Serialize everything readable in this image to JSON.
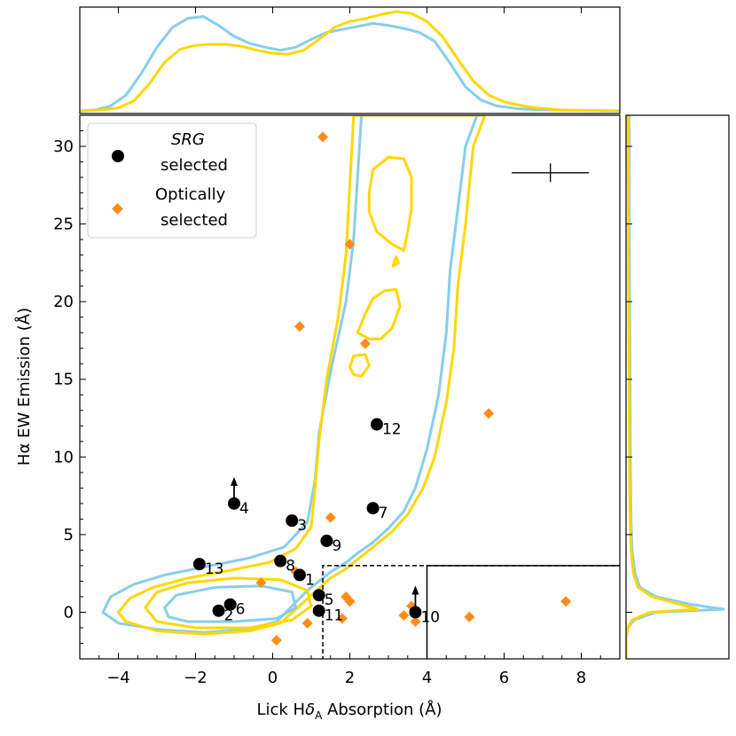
{
  "chart_data": {
    "type": "scatter",
    "xlabel": "Lick Hδ_A Absorption (Å)",
    "xlabel_main": "Lick H",
    "xlabel_delta": "δ",
    "xlabel_sub": "A",
    "xlabel_tail": " Absorption (Å)",
    "ylabel": "Hα EW Emission (Å)",
    "xlim": [
      -5,
      9
    ],
    "ylim": [
      -3,
      32
    ],
    "xticks": [
      {
        "v": -4,
        "label": "−4"
      },
      {
        "v": -2,
        "label": "−2"
      },
      {
        "v": 0,
        "label": "0"
      },
      {
        "v": 2,
        "label": "2"
      },
      {
        "v": 4,
        "label": "4"
      },
      {
        "v": 6,
        "label": "6"
      },
      {
        "v": 8,
        "label": "8"
      }
    ],
    "yticks": [
      {
        "v": 0,
        "label": "0"
      },
      {
        "v": 5,
        "label": "5"
      },
      {
        "v": 10,
        "label": "10"
      },
      {
        "v": 15,
        "label": "15"
      },
      {
        "v": 20,
        "label": "20"
      },
      {
        "v": 25,
        "label": "25"
      },
      {
        "v": 30,
        "label": "30"
      }
    ],
    "legend": {
      "position": "top-left",
      "entries": [
        {
          "line1": "SRG",
          "line2": "selected",
          "marker": "circle",
          "color": "#000000"
        },
        {
          "line1": "Optically",
          "line2": "selected",
          "marker": "diamond",
          "color": "#ff8c1a"
        }
      ]
    },
    "srg_selected": [
      {
        "id": "1",
        "x": 0.7,
        "y": 2.4
      },
      {
        "id": "2",
        "x": -1.4,
        "y": 0.1
      },
      {
        "id": "3",
        "x": 0.5,
        "y": 5.9
      },
      {
        "id": "4",
        "x": -1.0,
        "y": 7.0,
        "lower_limit": true
      },
      {
        "id": "5",
        "x": 1.2,
        "y": 1.1
      },
      {
        "id": "6",
        "x": -1.1,
        "y": 0.5
      },
      {
        "id": "7",
        "x": 2.6,
        "y": 6.7
      },
      {
        "id": "8",
        "x": 0.2,
        "y": 3.3
      },
      {
        "id": "9",
        "x": 1.4,
        "y": 4.6
      },
      {
        "id": "10",
        "x": 3.7,
        "y": 0.0,
        "lower_limit": true
      },
      {
        "id": "11",
        "x": 1.2,
        "y": 0.1
      },
      {
        "id": "12",
        "x": 2.7,
        "y": 12.1
      },
      {
        "id": "13",
        "x": -1.9,
        "y": 3.1
      }
    ],
    "optically_selected": [
      {
        "x": 1.3,
        "y": 30.6
      },
      {
        "x": 2.0,
        "y": 23.7
      },
      {
        "x": 0.7,
        "y": 18.4
      },
      {
        "x": 2.4,
        "y": 17.3
      },
      {
        "x": 5.6,
        "y": 12.8
      },
      {
        "x": 1.5,
        "y": 6.1
      },
      {
        "x": 0.6,
        "y": 2.6
      },
      {
        "x": -0.3,
        "y": 1.9
      },
      {
        "x": 1.9,
        "y": 1.0
      },
      {
        "x": 2.0,
        "y": 0.7
      },
      {
        "x": 1.8,
        "y": -0.4
      },
      {
        "x": 0.9,
        "y": -0.7
      },
      {
        "x": 0.1,
        "y": -1.8
      },
      {
        "x": 3.4,
        "y": -0.2
      },
      {
        "x": 3.6,
        "y": 0.4
      },
      {
        "x": 3.7,
        "y": -0.6
      },
      {
        "x": 5.1,
        "y": -0.3
      },
      {
        "x": 7.6,
        "y": 0.7
      }
    ],
    "error_bar": {
      "x": 7.2,
      "y": 28.3,
      "x_err": 1.0,
      "y_err": 0.6
    },
    "regions": [
      {
        "name": "dashed",
        "x0": 1.3,
        "y0": 3.0,
        "style": "dashed"
      },
      {
        "name": "solid",
        "x0": 4.0,
        "y0": 3.0,
        "style": "solid"
      }
    ],
    "contour_colors": {
      "inner": "#87ceeb",
      "outer": "#ffd700"
    },
    "contours": {
      "blue_outer": [
        [
          -4.4,
          0.0
        ],
        [
          -4.2,
          1.0
        ],
        [
          -3.6,
          1.8
        ],
        [
          -2.8,
          2.4
        ],
        [
          -1.8,
          2.9
        ],
        [
          -0.6,
          3.5
        ],
        [
          0.3,
          4.2
        ],
        [
          0.9,
          5.8
        ],
        [
          1.1,
          8.5
        ],
        [
          1.2,
          11.5
        ],
        [
          1.5,
          15.5
        ],
        [
          1.9,
          20.0
        ],
        [
          2.1,
          24.0
        ],
        [
          2.2,
          28.0
        ],
        [
          2.3,
          32.0
        ],
        [
          5.3,
          32.0
        ],
        [
          5.0,
          30.0
        ],
        [
          4.8,
          26.0
        ],
        [
          4.6,
          22.0
        ],
        [
          4.5,
          18.0
        ],
        [
          4.3,
          14.0
        ],
        [
          4.0,
          10.5
        ],
        [
          3.7,
          8.0
        ],
        [
          3.4,
          6.5
        ],
        [
          3.0,
          5.4
        ],
        [
          2.6,
          4.5
        ],
        [
          2.2,
          3.8
        ],
        [
          1.9,
          3.2
        ],
        [
          1.5,
          2.6
        ],
        [
          0.9,
          1.4
        ],
        [
          0.5,
          0.4
        ],
        [
          0.1,
          -0.6
        ],
        [
          -0.6,
          -1.1
        ],
        [
          -1.8,
          -1.3
        ],
        [
          -3.0,
          -1.1
        ],
        [
          -4.0,
          -0.7
        ]
      ],
      "yellow_outer": [
        [
          -4.0,
          0.0
        ],
        [
          -3.7,
          0.9
        ],
        [
          -3.1,
          1.6
        ],
        [
          -2.2,
          2.2
        ],
        [
          -1.1,
          2.7
        ],
        [
          -0.1,
          3.2
        ],
        [
          0.6,
          4.1
        ],
        [
          1.0,
          5.5
        ],
        [
          1.1,
          8.0
        ],
        [
          1.2,
          11.0
        ],
        [
          1.4,
          15.0
        ],
        [
          1.7,
          19.0
        ],
        [
          1.9,
          23.0
        ],
        [
          2.0,
          27.5
        ],
        [
          2.1,
          32.0
        ],
        [
          5.5,
          32.0
        ],
        [
          5.2,
          30.0
        ],
        [
          5.0,
          25.0
        ],
        [
          4.8,
          21.0
        ],
        [
          4.7,
          17.0
        ],
        [
          4.5,
          13.5
        ],
        [
          4.2,
          10.0
        ],
        [
          3.9,
          8.0
        ],
        [
          3.5,
          6.3
        ],
        [
          3.1,
          5.2
        ],
        [
          2.6,
          4.2
        ],
        [
          2.2,
          3.4
        ],
        [
          1.9,
          2.8
        ],
        [
          1.5,
          2.2
        ],
        [
          1.0,
          1.1
        ],
        [
          0.6,
          0.2
        ],
        [
          0.2,
          -0.7
        ],
        [
          -0.6,
          -1.2
        ],
        [
          -1.8,
          -1.4
        ],
        [
          -3.0,
          -1.2
        ],
        [
          -3.8,
          -0.6
        ]
      ],
      "yellow_inner": [
        [
          -3.3,
          0.3
        ],
        [
          -3.0,
          1.3
        ],
        [
          -2.2,
          1.9
        ],
        [
          -1.0,
          2.2
        ],
        [
          0.2,
          2.1
        ],
        [
          0.9,
          1.4
        ],
        [
          1.0,
          0.4
        ],
        [
          0.5,
          -0.5
        ],
        [
          -0.6,
          -1.0
        ],
        [
          -2.0,
          -1.0
        ],
        [
          -3.0,
          -0.6
        ]
      ],
      "blue_inner": [
        [
          -2.8,
          0.3
        ],
        [
          -2.5,
          1.1
        ],
        [
          -1.5,
          1.6
        ],
        [
          -0.3,
          1.7
        ],
        [
          0.5,
          1.3
        ],
        [
          0.6,
          0.3
        ],
        [
          0.1,
          -0.4
        ],
        [
          -1.0,
          -0.6
        ],
        [
          -2.2,
          -0.6
        ],
        [
          -2.7,
          -0.3
        ]
      ],
      "island_top": [
        [
          2.5,
          27.0
        ],
        [
          2.6,
          28.5
        ],
        [
          3.0,
          29.3
        ],
        [
          3.4,
          29.2
        ],
        [
          3.6,
          28.0
        ],
        [
          3.6,
          26.0
        ],
        [
          3.5,
          24.5
        ],
        [
          3.4,
          23.3
        ],
        [
          3.1,
          23.7
        ],
        [
          2.7,
          24.5
        ],
        [
          2.5,
          25.8
        ]
      ],
      "island_mid": [
        [
          2.2,
          18.0
        ],
        [
          2.4,
          19.2
        ],
        [
          2.6,
          20.2
        ],
        [
          2.9,
          20.7
        ],
        [
          3.2,
          20.8
        ],
        [
          3.3,
          19.7
        ],
        [
          3.1,
          18.3
        ],
        [
          2.8,
          17.6
        ],
        [
          2.5,
          17.6
        ]
      ],
      "island_small": [
        [
          2.0,
          15.8
        ],
        [
          2.1,
          16.5
        ],
        [
          2.4,
          16.6
        ],
        [
          2.5,
          15.9
        ],
        [
          2.3,
          15.2
        ],
        [
          2.1,
          15.3
        ]
      ],
      "island_dot": [
        [
          3.12,
          22.3
        ],
        [
          3.2,
          22.9
        ],
        [
          3.26,
          22.5
        ]
      ]
    },
    "top_marginal": {
      "blue": [
        [
          -5.0,
          0.0
        ],
        [
          -4.6,
          0.01
        ],
        [
          -4.2,
          0.05
        ],
        [
          -3.8,
          0.16
        ],
        [
          -3.4,
          0.38
        ],
        [
          -3.0,
          0.64
        ],
        [
          -2.6,
          0.84
        ],
        [
          -2.2,
          0.93
        ],
        [
          -1.8,
          0.95
        ],
        [
          -1.4,
          0.86
        ],
        [
          -1.0,
          0.75
        ],
        [
          -0.6,
          0.68
        ],
        [
          -0.2,
          0.64
        ],
        [
          0.2,
          0.61
        ],
        [
          0.6,
          0.64
        ],
        [
          1.0,
          0.72
        ],
        [
          1.4,
          0.79
        ],
        [
          1.8,
          0.82
        ],
        [
          2.2,
          0.85
        ],
        [
          2.6,
          0.88
        ],
        [
          3.0,
          0.86
        ],
        [
          3.4,
          0.83
        ],
        [
          3.8,
          0.79
        ],
        [
          4.2,
          0.7
        ],
        [
          4.6,
          0.48
        ],
        [
          5.0,
          0.24
        ],
        [
          5.4,
          0.11
        ],
        [
          5.8,
          0.05
        ],
        [
          6.4,
          0.02
        ],
        [
          7.0,
          0.01
        ],
        [
          9.0,
          0.0
        ]
      ],
      "yellow": [
        [
          -5.0,
          0.0
        ],
        [
          -4.4,
          0.01
        ],
        [
          -4.0,
          0.03
        ],
        [
          -3.6,
          0.1
        ],
        [
          -3.2,
          0.27
        ],
        [
          -2.8,
          0.49
        ],
        [
          -2.4,
          0.62
        ],
        [
          -2.0,
          0.66
        ],
        [
          -1.6,
          0.67
        ],
        [
          -1.2,
          0.67
        ],
        [
          -0.8,
          0.65
        ],
        [
          -0.4,
          0.61
        ],
        [
          0.0,
          0.58
        ],
        [
          0.4,
          0.57
        ],
        [
          0.8,
          0.61
        ],
        [
          1.2,
          0.72
        ],
        [
          1.6,
          0.84
        ],
        [
          2.0,
          0.9
        ],
        [
          2.4,
          0.93
        ],
        [
          2.8,
          0.97
        ],
        [
          3.2,
          1.0
        ],
        [
          3.6,
          0.98
        ],
        [
          4.0,
          0.9
        ],
        [
          4.4,
          0.75
        ],
        [
          4.8,
          0.52
        ],
        [
          5.2,
          0.3
        ],
        [
          5.6,
          0.16
        ],
        [
          6.0,
          0.09
        ],
        [
          6.6,
          0.04
        ],
        [
          7.4,
          0.01
        ],
        [
          9.0,
          0.0
        ]
      ]
    },
    "right_marginal": {
      "blue": [
        [
          -3.0,
          0.0
        ],
        [
          -1.6,
          0.0
        ],
        [
          -1.0,
          0.02
        ],
        [
          -0.5,
          0.08
        ],
        [
          0.0,
          0.3
        ],
        [
          0.2,
          0.98
        ],
        [
          0.5,
          0.66
        ],
        [
          1.0,
          0.3
        ],
        [
          1.6,
          0.14
        ],
        [
          2.5,
          0.09
        ],
        [
          4.0,
          0.06
        ],
        [
          6.0,
          0.05
        ],
        [
          9.0,
          0.045
        ],
        [
          15.0,
          0.04
        ],
        [
          22.0,
          0.035
        ],
        [
          32.0,
          0.03
        ]
      ],
      "yellow": [
        [
          -3.0,
          0.0
        ],
        [
          -1.6,
          0.0
        ],
        [
          -1.0,
          0.02
        ],
        [
          -0.5,
          0.06
        ],
        [
          0.0,
          0.24
        ],
        [
          0.2,
          0.72
        ],
        [
          0.5,
          0.55
        ],
        [
          1.0,
          0.26
        ],
        [
          1.6,
          0.12
        ],
        [
          2.5,
          0.075
        ],
        [
          4.0,
          0.05
        ],
        [
          6.0,
          0.04
        ],
        [
          9.0,
          0.035
        ],
        [
          15.0,
          0.03
        ],
        [
          22.0,
          0.025
        ],
        [
          32.0,
          0.02
        ]
      ]
    }
  }
}
